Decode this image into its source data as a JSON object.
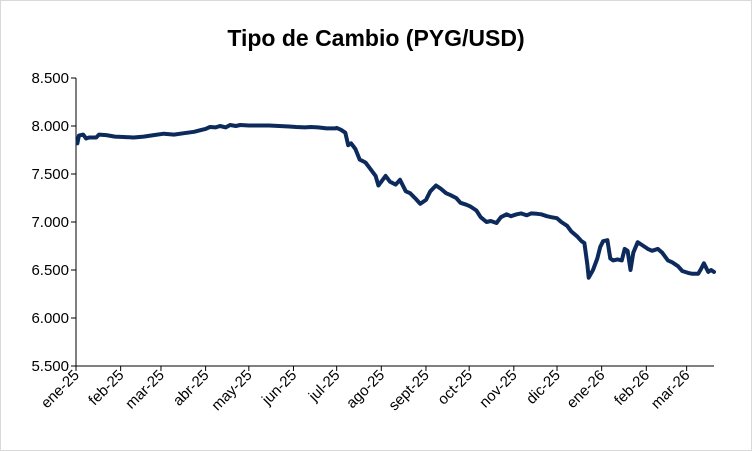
{
  "chart_data": {
    "type": "line",
    "title": "Tipo de Cambio (PYG/USD)",
    "xlabel": "",
    "ylabel": "",
    "ylim": [
      5500,
      8500
    ],
    "y_ticks": [
      "8.500",
      "8.000",
      "7.500",
      "7.000",
      "6.500",
      "6.000",
      "5.500"
    ],
    "y_tick_values": [
      8500,
      8000,
      7500,
      7000,
      6500,
      6000,
      5500
    ],
    "x_ticks": [
      "ene-25",
      "feb-25",
      "mar-25",
      "abr-25",
      "may-25",
      "jun-25",
      "jul-25",
      "ago-25",
      "sept-25",
      "oct-25",
      "nov-25",
      "dic-25",
      "ene-26",
      "feb-26",
      "mar-26"
    ],
    "x_range": [
      "2025-01-01",
      "2026-03-20"
    ],
    "grid": false,
    "legend": "none",
    "line_color": "#0d2a5c",
    "series": [
      {
        "points": [
          [
            "2025-01-02",
            7820
          ],
          [
            "2025-01-03",
            7900
          ],
          [
            "2025-01-06",
            7910
          ],
          [
            "2025-01-08",
            7870
          ],
          [
            "2025-01-10",
            7880
          ],
          [
            "2025-01-15",
            7880
          ],
          [
            "2025-01-17",
            7910
          ],
          [
            "2025-01-22",
            7905
          ],
          [
            "2025-01-28",
            7890
          ],
          [
            "2025-02-03",
            7885
          ],
          [
            "2025-02-10",
            7880
          ],
          [
            "2025-02-17",
            7890
          ],
          [
            "2025-02-24",
            7905
          ],
          [
            "2025-03-03",
            7920
          ],
          [
            "2025-03-10",
            7910
          ],
          [
            "2025-03-17",
            7925
          ],
          [
            "2025-03-24",
            7940
          ],
          [
            "2025-03-28",
            7955
          ],
          [
            "2025-04-01",
            7970
          ],
          [
            "2025-04-04",
            7990
          ],
          [
            "2025-04-08",
            7985
          ],
          [
            "2025-04-11",
            8000
          ],
          [
            "2025-04-15",
            7985
          ],
          [
            "2025-04-18",
            8010
          ],
          [
            "2025-04-22",
            8000
          ],
          [
            "2025-04-25",
            8010
          ],
          [
            "2025-05-01",
            8005
          ],
          [
            "2025-05-08",
            8005
          ],
          [
            "2025-05-15",
            8005
          ],
          [
            "2025-05-22",
            8000
          ],
          [
            "2025-05-29",
            7995
          ],
          [
            "2025-06-03",
            7990
          ],
          [
            "2025-06-09",
            7985
          ],
          [
            "2025-06-13",
            7990
          ],
          [
            "2025-06-18",
            7985
          ],
          [
            "2025-06-24",
            7975
          ],
          [
            "2025-06-30",
            7975
          ],
          [
            "2025-07-01",
            7980
          ],
          [
            "2025-07-04",
            7960
          ],
          [
            "2025-07-07",
            7930
          ],
          [
            "2025-07-09",
            7800
          ],
          [
            "2025-07-11",
            7820
          ],
          [
            "2025-07-14",
            7760
          ],
          [
            "2025-07-17",
            7650
          ],
          [
            "2025-07-21",
            7620
          ],
          [
            "2025-07-24",
            7560
          ],
          [
            "2025-07-28",
            7480
          ],
          [
            "2025-07-30",
            7380
          ],
          [
            "2025-08-01",
            7420
          ],
          [
            "2025-08-04",
            7480
          ],
          [
            "2025-08-07",
            7420
          ],
          [
            "2025-08-11",
            7390
          ],
          [
            "2025-08-14",
            7440
          ],
          [
            "2025-08-18",
            7320
          ],
          [
            "2025-08-21",
            7300
          ],
          [
            "2025-08-25",
            7240
          ],
          [
            "2025-08-28",
            7190
          ],
          [
            "2025-09-01",
            7230
          ],
          [
            "2025-09-04",
            7320
          ],
          [
            "2025-09-08",
            7380
          ],
          [
            "2025-09-11",
            7350
          ],
          [
            "2025-09-15",
            7300
          ],
          [
            "2025-09-18",
            7280
          ],
          [
            "2025-09-22",
            7250
          ],
          [
            "2025-09-25",
            7200
          ],
          [
            "2025-09-29",
            7180
          ],
          [
            "2025-10-02",
            7160
          ],
          [
            "2025-10-06",
            7120
          ],
          [
            "2025-10-09",
            7050
          ],
          [
            "2025-10-13",
            7000
          ],
          [
            "2025-10-16",
            7010
          ],
          [
            "2025-10-20",
            6990
          ],
          [
            "2025-10-23",
            7050
          ],
          [
            "2025-10-27",
            7080
          ],
          [
            "2025-10-30",
            7060
          ],
          [
            "2025-11-03",
            7080
          ],
          [
            "2025-11-06",
            7090
          ],
          [
            "2025-11-10",
            7070
          ],
          [
            "2025-11-13",
            7090
          ],
          [
            "2025-11-17",
            7085
          ],
          [
            "2025-11-20",
            7080
          ],
          [
            "2025-11-24",
            7060
          ],
          [
            "2025-11-27",
            7050
          ],
          [
            "2025-12-01",
            7040
          ],
          [
            "2025-12-04",
            7000
          ],
          [
            "2025-12-08",
            6960
          ],
          [
            "2025-12-11",
            6900
          ],
          [
            "2025-12-15",
            6850
          ],
          [
            "2025-12-18",
            6800
          ],
          [
            "2025-12-20",
            6780
          ],
          [
            "2025-12-22",
            6560
          ],
          [
            "2025-12-23",
            6420
          ],
          [
            "2025-12-26",
            6500
          ],
          [
            "2025-12-29",
            6620
          ],
          [
            "2025-12-31",
            6740
          ],
          [
            "2026-01-02",
            6800
          ],
          [
            "2026-01-05",
            6810
          ],
          [
            "2026-01-07",
            6620
          ],
          [
            "2026-01-09",
            6600
          ],
          [
            "2026-01-12",
            6610
          ],
          [
            "2026-01-15",
            6600
          ],
          [
            "2026-01-17",
            6720
          ],
          [
            "2026-01-19",
            6700
          ],
          [
            "2026-01-21",
            6500
          ],
          [
            "2026-01-23",
            6680
          ],
          [
            "2026-01-26",
            6790
          ],
          [
            "2026-01-29",
            6760
          ],
          [
            "2026-02-02",
            6720
          ],
          [
            "2026-02-05",
            6700
          ],
          [
            "2026-02-09",
            6720
          ],
          [
            "2026-02-12",
            6680
          ],
          [
            "2026-02-16",
            6600
          ],
          [
            "2026-02-19",
            6580
          ],
          [
            "2026-02-23",
            6540
          ],
          [
            "2026-02-26",
            6490
          ],
          [
            "2026-03-02",
            6470
          ],
          [
            "2026-03-05",
            6460
          ],
          [
            "2026-03-09",
            6460
          ],
          [
            "2026-03-11",
            6510
          ],
          [
            "2026-03-13",
            6570
          ],
          [
            "2026-03-16",
            6480
          ],
          [
            "2026-03-18",
            6500
          ],
          [
            "2026-03-20",
            6480
          ]
        ]
      }
    ]
  }
}
